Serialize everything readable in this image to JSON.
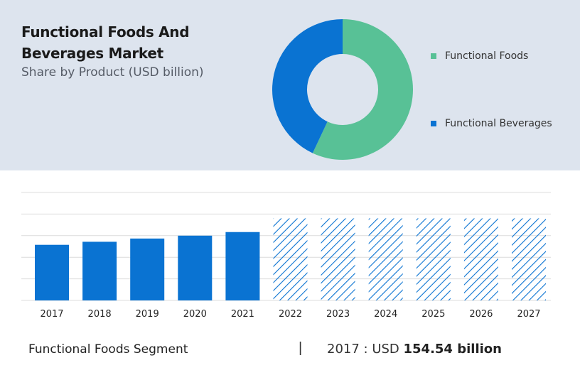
{
  "title": "Functional Foods And Beverages Market",
  "subtitle": "Share by Product (USD billion)",
  "colors": {
    "functional_foods": "#58c196",
    "functional_beverages": "#0a73d2",
    "bar": "#0a73d2",
    "hatch": "#0a73d2"
  },
  "chart_data": [
    {
      "type": "pie",
      "variant": "donut",
      "categories": [
        "Functional Foods",
        "Functional Beverages"
      ],
      "values": [
        57,
        43
      ],
      "legend_position": "right"
    },
    {
      "type": "bar",
      "categories": [
        "2017",
        "2018",
        "2019",
        "2020",
        "2021",
        "2022",
        "2023",
        "2024",
        "2025",
        "2026",
        "2027"
      ],
      "values": [
        154.54,
        163,
        172,
        180,
        190,
        228,
        228,
        228,
        228,
        228,
        228
      ],
      "forecast_from": "2022",
      "forecast_style": "hatched",
      "ylim": [
        0,
        300
      ],
      "grid": true
    }
  ],
  "footer": {
    "segment_label": "Functional Foods Segment",
    "separator": "|",
    "year_prefix": "2017 :  USD ",
    "value": "154.54 billion"
  }
}
